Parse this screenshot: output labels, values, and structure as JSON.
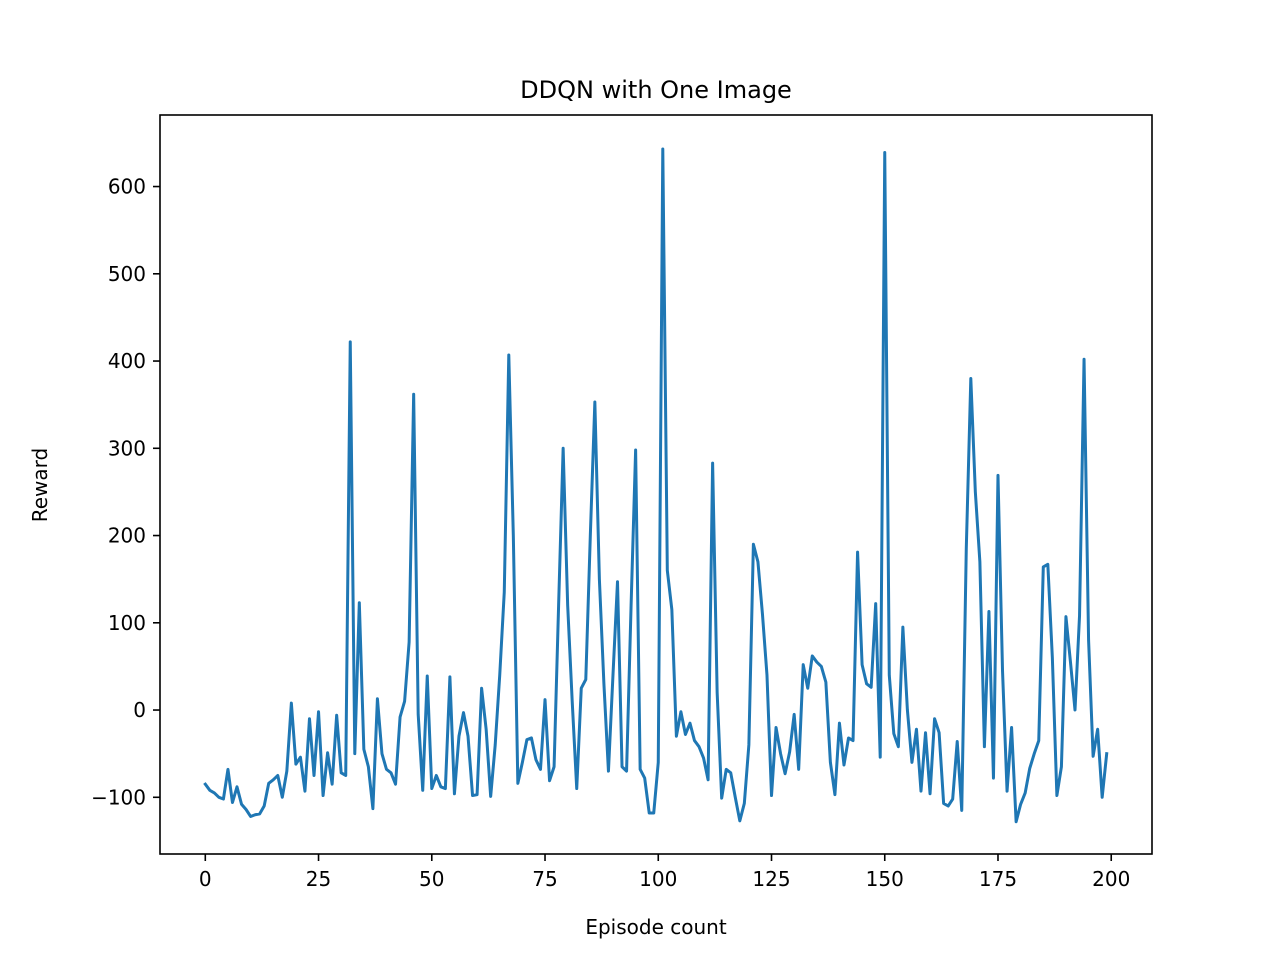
{
  "chart_data": {
    "type": "line",
    "title": "DDQN with One Image",
    "xlabel": "Episode count",
    "ylabel": "Reward",
    "xlim": [
      -10,
      209
    ],
    "ylim": [
      -165,
      682
    ],
    "xticks": [
      0,
      25,
      50,
      75,
      100,
      125,
      150,
      175,
      200
    ],
    "yticks": [
      -100,
      0,
      100,
      200,
      300,
      400,
      500,
      600
    ],
    "ytick_labels": [
      "−100",
      "0",
      "100",
      "200",
      "300",
      "400",
      "500",
      "600"
    ],
    "grid": false,
    "colors": {
      "series": "#1f77b4"
    },
    "series": [
      {
        "x": [
          0,
          1,
          2,
          3,
          4,
          5,
          6,
          7,
          8,
          9,
          10,
          11,
          12,
          13,
          14,
          15,
          16,
          17,
          18,
          19,
          20,
          21,
          22,
          23,
          24,
          25,
          26,
          27,
          28,
          29,
          30,
          31,
          32,
          33,
          34,
          35,
          36,
          37,
          38,
          39,
          40,
          41,
          42,
          43,
          44,
          45,
          46,
          47,
          48,
          49,
          50,
          51,
          52,
          53,
          54,
          55,
          56,
          57,
          58,
          59,
          60,
          61,
          62,
          63,
          64,
          65,
          66,
          67,
          68,
          69,
          70,
          71,
          72,
          73,
          74,
          75,
          76,
          77,
          78,
          79,
          80,
          81,
          82,
          83,
          84,
          85,
          86,
          87,
          88,
          89,
          90,
          91,
          92,
          93,
          94,
          95,
          96,
          97,
          98,
          99,
          100,
          101,
          102,
          103,
          104,
          105,
          106,
          107,
          108,
          109,
          110,
          111,
          112,
          113,
          114,
          115,
          116,
          117,
          118,
          119,
          120,
          121,
          122,
          123,
          124,
          125,
          126,
          127,
          128,
          129,
          130,
          131,
          132,
          133,
          134,
          135,
          136,
          137,
          138,
          139,
          140,
          141,
          142,
          143,
          144,
          145,
          146,
          147,
          148,
          149,
          150,
          151,
          152,
          153,
          154,
          155,
          156,
          157,
          158,
          159,
          160,
          161,
          162,
          163,
          164,
          165,
          166,
          167,
          168,
          169,
          170,
          171,
          172,
          173,
          174,
          175,
          176,
          177,
          178,
          179,
          180,
          181,
          182,
          183,
          184,
          185,
          186,
          187,
          188,
          189,
          190,
          191,
          192,
          193,
          194,
          195,
          196,
          197,
          198,
          199
        ],
        "y": [
          -85,
          -92,
          -95,
          -100,
          -102,
          -68,
          -106,
          -88,
          -108,
          -114,
          -122,
          -120,
          -119,
          -110,
          -84,
          -80,
          -75,
          -100,
          -70,
          8,
          -62,
          -54,
          -93,
          -10,
          -75,
          -2,
          -98,
          -49,
          -85,
          -6,
          -72,
          -75,
          422,
          -50,
          123,
          -45,
          -65,
          -113,
          13,
          -50,
          -68,
          -72,
          -85,
          -8,
          10,
          78,
          362,
          -5,
          -92,
          39,
          -90,
          -75,
          -88,
          -90,
          38,
          -96,
          -30,
          -3,
          -30,
          -98,
          -97,
          25,
          -22,
          -99,
          -40,
          40,
          135,
          407,
          200,
          -84,
          -60,
          -34,
          -32,
          -57,
          -68,
          12,
          -81,
          -65,
          120,
          300,
          120,
          10,
          -90,
          25,
          35,
          200,
          353,
          150,
          30,
          -70,
          40,
          147,
          -65,
          -70,
          120,
          298,
          -68,
          -78,
          -118,
          -118,
          -60,
          643,
          160,
          115,
          -30,
          -2,
          -28,
          -15,
          -35,
          -42,
          -55,
          -80,
          283,
          20,
          -101,
          -68,
          -72,
          -100,
          -127,
          -107,
          -40,
          190,
          170,
          110,
          40,
          -98,
          -20,
          -50,
          -73,
          -48,
          -5,
          -68,
          52,
          25,
          62,
          55,
          50,
          32,
          -60,
          -97,
          -15,
          -63,
          -32,
          -35,
          181,
          52,
          30,
          26,
          122,
          -54,
          639,
          40,
          -27,
          -42,
          95,
          0,
          -60,
          -22,
          -93,
          -26,
          -96,
          -10,
          -26,
          -107,
          -110,
          -102,
          -36,
          -115,
          185,
          380,
          250,
          170,
          -42,
          113,
          -78,
          269,
          45,
          -93,
          -20,
          -128,
          -108,
          -95,
          -67,
          -50,
          -35,
          164,
          167,
          60,
          -98,
          -65,
          107,
          55,
          0,
          108,
          402,
          80,
          -53,
          -22,
          -100,
          -50
        ]
      }
    ]
  }
}
